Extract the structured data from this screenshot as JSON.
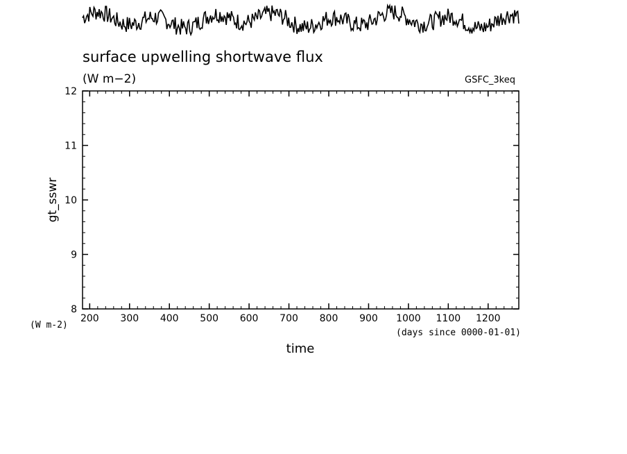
{
  "chart_data": {
    "type": "line",
    "title": "surface upwelling shortwave flux",
    "units": "(W m−2)",
    "dataset": "GSFC_3keq",
    "ylabel": "gt_sswr",
    "xlabel": "time",
    "x_units": "(days since 0000-01-01)",
    "y_units": "(W m-2)",
    "xlim": [
      182,
      1277
    ],
    "ylim": [
      8,
      12
    ],
    "x_ticks": [
      "200",
      "300",
      "400",
      "500",
      "600",
      "700",
      "800",
      "900",
      "1000",
      "1100",
      "1200"
    ],
    "x_tick_values": [
      200,
      300,
      400,
      500,
      600,
      700,
      800,
      900,
      1000,
      1100,
      1200
    ],
    "y_ticks": [
      "8",
      "9",
      "10",
      "11",
      "12"
    ],
    "y_tick_values": [
      8,
      9,
      10,
      11,
      12
    ],
    "grid": false,
    "series": [],
    "overview_strip": {
      "description": "noisy time series thumbnail above the plot",
      "samples": 420
    }
  }
}
